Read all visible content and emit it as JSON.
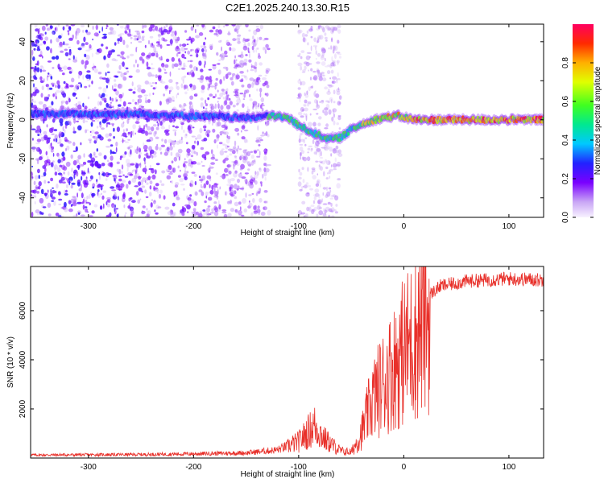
{
  "title": "C2E1.2025.240.13.30.R15",
  "colors": {
    "snr_line": "#e8302a",
    "axis": "#000000",
    "background": "#ffffff"
  },
  "chart_data": [
    {
      "type": "heatmap",
      "name": "spectrogram",
      "xlabel": "Height of straight line (km)",
      "ylabel": "Frequency (Hz)",
      "xlim": [
        -355,
        133
      ],
      "ylim": [
        -50,
        49
      ],
      "xticks": [
        -300,
        -200,
        -100,
        0,
        100
      ],
      "yticks": [
        -40,
        -20,
        0,
        20,
        40
      ],
      "tone_track": [
        {
          "x": -350,
          "y": 3
        },
        {
          "x": -250,
          "y": 3
        },
        {
          "x": -200,
          "y": 2
        },
        {
          "x": -150,
          "y": 1
        },
        {
          "x": -125,
          "y": 2
        },
        {
          "x": -110,
          "y": 1
        },
        {
          "x": -100,
          "y": -3
        },
        {
          "x": -85,
          "y": -7
        },
        {
          "x": -70,
          "y": -10
        },
        {
          "x": -60,
          "y": -9
        },
        {
          "x": -50,
          "y": -5
        },
        {
          "x": -35,
          "y": -1
        },
        {
          "x": -20,
          "y": 1
        },
        {
          "x": -5,
          "y": 2
        },
        {
          "x": 10,
          "y": 0
        },
        {
          "x": 133,
          "y": 0
        }
      ],
      "colorbar": {
        "label": "Normalized spectral amplitude",
        "range": [
          0,
          1
        ],
        "ticks": [
          "0.0",
          "0.2",
          "0.4",
          "0.6",
          "0.8"
        ]
      }
    },
    {
      "type": "line",
      "name": "snr",
      "xlabel": "Height of straight line (km)",
      "ylabel": "SNR (10 * v/v)",
      "xlim": [
        -355,
        133
      ],
      "ylim": [
        0,
        7800
      ],
      "xticks": [
        -300,
        -200,
        -100,
        0,
        100
      ],
      "yticks": [
        2000,
        4000,
        6000
      ],
      "envelope": [
        {
          "x": -355,
          "y": 130
        },
        {
          "x": -250,
          "y": 150
        },
        {
          "x": -200,
          "y": 180
        },
        {
          "x": -150,
          "y": 220
        },
        {
          "x": -120,
          "y": 350
        },
        {
          "x": -100,
          "y": 700
        },
        {
          "x": -85,
          "y": 1400
        },
        {
          "x": -75,
          "y": 800
        },
        {
          "x": -60,
          "y": 300
        },
        {
          "x": -50,
          "y": 250
        },
        {
          "x": -40,
          "y": 1200
        },
        {
          "x": -30,
          "y": 2700
        },
        {
          "x": -20,
          "y": 3500
        },
        {
          "x": -10,
          "y": 4200
        },
        {
          "x": 0,
          "y": 5000
        },
        {
          "x": 10,
          "y": 5600
        },
        {
          "x": 20,
          "y": 6500
        },
        {
          "x": 35,
          "y": 7000
        },
        {
          "x": 60,
          "y": 7200
        },
        {
          "x": 100,
          "y": 7300
        },
        {
          "x": 133,
          "y": 7250
        }
      ]
    }
  ]
}
